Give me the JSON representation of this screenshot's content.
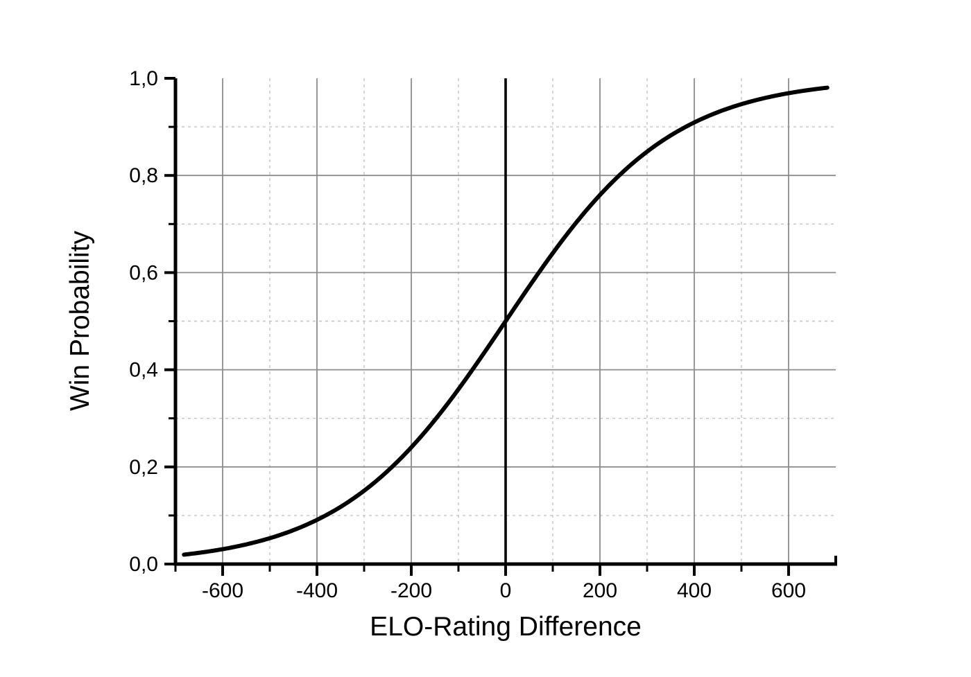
{
  "chart_data": {
    "type": "line",
    "title": "",
    "xlabel": "ELO-Rating Difference",
    "ylabel": "Win Probability",
    "xlim": [
      -700,
      700
    ],
    "ylim": [
      0,
      1
    ],
    "legend": "none",
    "grid": {
      "major_solid": true,
      "minor_dashed": true
    },
    "zero_line_x": 0,
    "x_major_ticks": [
      {
        "value": -600,
        "label": "-600"
      },
      {
        "value": -400,
        "label": "-400"
      },
      {
        "value": -200,
        "label": "-200"
      },
      {
        "value": 0,
        "label": "0"
      },
      {
        "value": 200,
        "label": "200"
      },
      {
        "value": 400,
        "label": "400"
      },
      {
        "value": 600,
        "label": "600"
      }
    ],
    "x_minor_ticks": [
      -700,
      -500,
      -300,
      -100,
      100,
      300,
      500
    ],
    "x_minor_gridlines": [
      -500,
      -300,
      -100,
      100,
      300,
      500
    ],
    "x_major_gridlines": [
      -600,
      -400,
      -200,
      200,
      400,
      600
    ],
    "y_major_ticks": [
      {
        "value": 0.0,
        "label": "0,0"
      },
      {
        "value": 0.2,
        "label": "0,2"
      },
      {
        "value": 0.4,
        "label": "0,4"
      },
      {
        "value": 0.6,
        "label": "0,6"
      },
      {
        "value": 0.8,
        "label": "0,8"
      },
      {
        "value": 1.0,
        "label": "1,0"
      }
    ],
    "y_minor_ticks": [
      0.1,
      0.3,
      0.5,
      0.7,
      0.9
    ],
    "y_minor_gridlines": [
      0.1,
      0.3,
      0.5,
      0.7,
      0.9
    ],
    "y_major_gridlines": [
      0.2,
      0.4,
      0.6,
      0.8
    ],
    "axis_end_cap": {
      "x": 700,
      "direction": "up"
    },
    "series": [
      {
        "name": "win-probability-curve",
        "model": "P = 1 / (1 + 10^(-d/400))",
        "logistic_base10_scale": 400,
        "x_range": [
          -682,
          682
        ],
        "points": [
          [
            -682,
            0.0193
          ],
          [
            -600,
            0.0307
          ],
          [
            -500,
            0.0532
          ],
          [
            -400,
            0.0909
          ],
          [
            -300,
            0.151
          ],
          [
            -200,
            0.2403
          ],
          [
            -100,
            0.3599
          ],
          [
            0,
            0.5
          ],
          [
            100,
            0.6401
          ],
          [
            200,
            0.7597
          ],
          [
            300,
            0.849
          ],
          [
            400,
            0.9091
          ],
          [
            500,
            0.9468
          ],
          [
            600,
            0.9693
          ],
          [
            682,
            0.9807
          ]
        ]
      }
    ],
    "colors": {
      "curve": "#000000",
      "axis": "#000000",
      "zero_line": "#000000",
      "grid_major": "#8c8c8c",
      "grid_minor": "#c3c3c3",
      "text": "#000000",
      "background": "#ffffff"
    }
  }
}
